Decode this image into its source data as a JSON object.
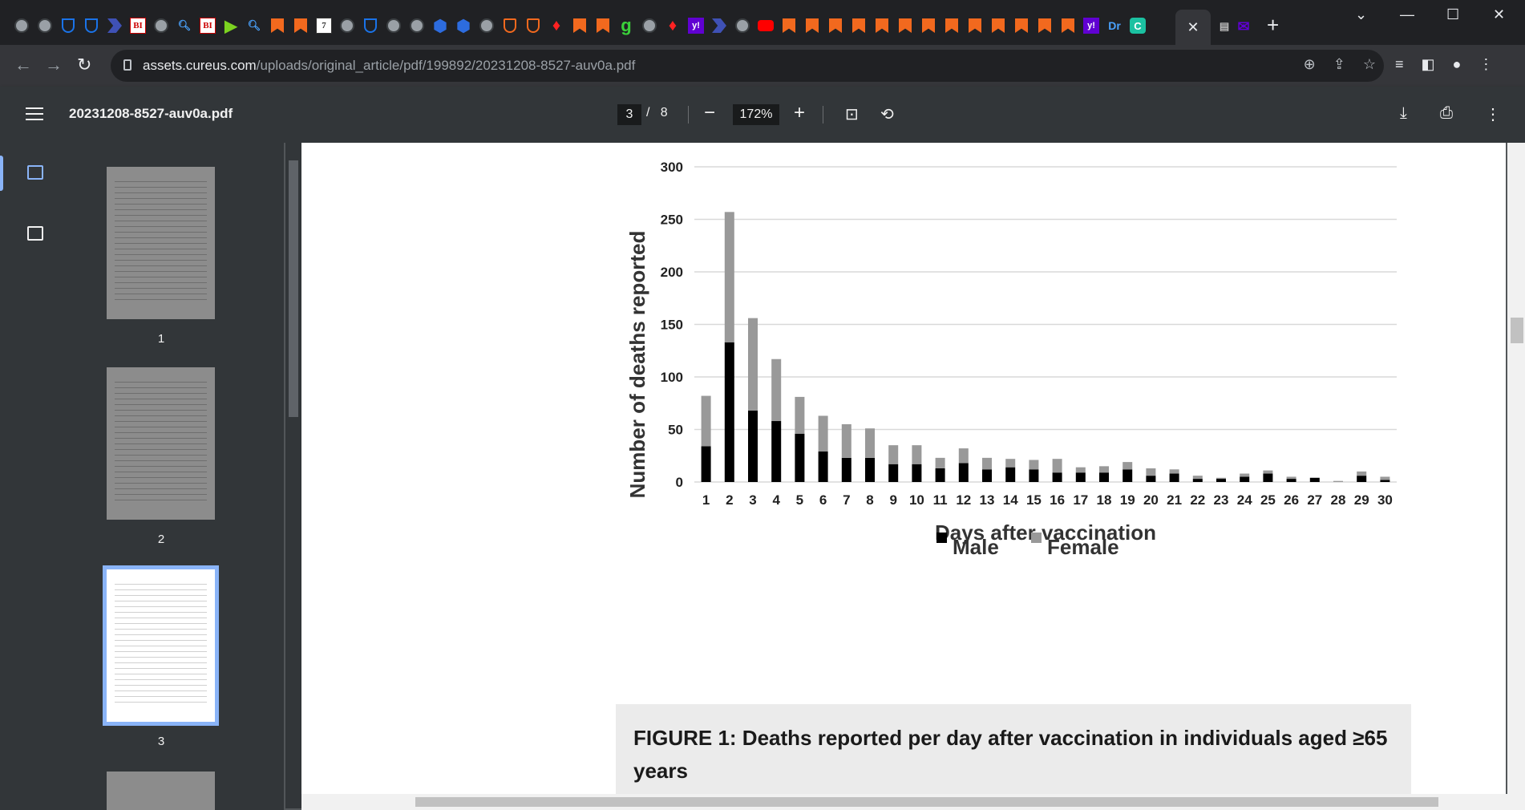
{
  "browser": {
    "active_tab_close": "✕",
    "new_tab": "+",
    "window_controls": {
      "dropdown": "⌄",
      "minimize": "—",
      "maximize": "☐",
      "close": "✕"
    },
    "url_host": "assets.cureus.com",
    "url_path": "/uploads/original_article/pdf/199892/20231208-8527-auv0a.pdf",
    "favicon_letters": {
      "bi": "BI",
      "yahoo": "y!",
      "dr": "Dr",
      "c": "C",
      "g": "g"
    }
  },
  "pdf_toolbar": {
    "filename": "20231208-8527-auv0a.pdf",
    "current_page": "3",
    "page_separator": "/",
    "total_pages": "8",
    "zoom_out": "−",
    "zoom": "172%",
    "zoom_in": "+"
  },
  "thumbnails": [
    {
      "label": "1",
      "selected": false
    },
    {
      "label": "2",
      "selected": false
    },
    {
      "label": "3",
      "selected": true
    }
  ],
  "chart_data": {
    "type": "bar",
    "stacked": true,
    "categories": [
      "1",
      "2",
      "3",
      "4",
      "5",
      "6",
      "7",
      "8",
      "9",
      "10",
      "11",
      "12",
      "13",
      "14",
      "15",
      "16",
      "17",
      "18",
      "19",
      "20",
      "21",
      "22",
      "23",
      "24",
      "25",
      "26",
      "27",
      "28",
      "29",
      "30"
    ],
    "series": [
      {
        "name": "Male",
        "color": "#000000",
        "values": [
          34,
          133,
          68,
          58,
          46,
          29,
          23,
          23,
          17,
          17,
          13,
          18,
          12,
          14,
          12,
          9,
          9,
          9,
          12,
          6,
          8,
          3,
          3,
          5,
          8,
          3,
          4,
          0,
          6,
          2
        ]
      },
      {
        "name": "Female",
        "color": "#999999",
        "values": [
          48,
          124,
          88,
          59,
          35,
          34,
          32,
          28,
          18,
          18,
          10,
          14,
          11,
          8,
          9,
          13,
          5,
          6,
          7,
          7,
          4,
          3,
          1,
          3,
          3,
          2,
          0,
          1,
          4,
          3
        ]
      }
    ],
    "ylabel": "Number of deaths reported",
    "xlabel": "Days after vaccination",
    "ylim": [
      0,
      300
    ],
    "yticks": [
      0,
      50,
      100,
      150,
      200,
      250,
      300
    ],
    "grid": true,
    "legend": "bottom"
  },
  "caption": "FIGURE 1: Deaths reported per day after vaccination in individuals aged ≥65 years"
}
